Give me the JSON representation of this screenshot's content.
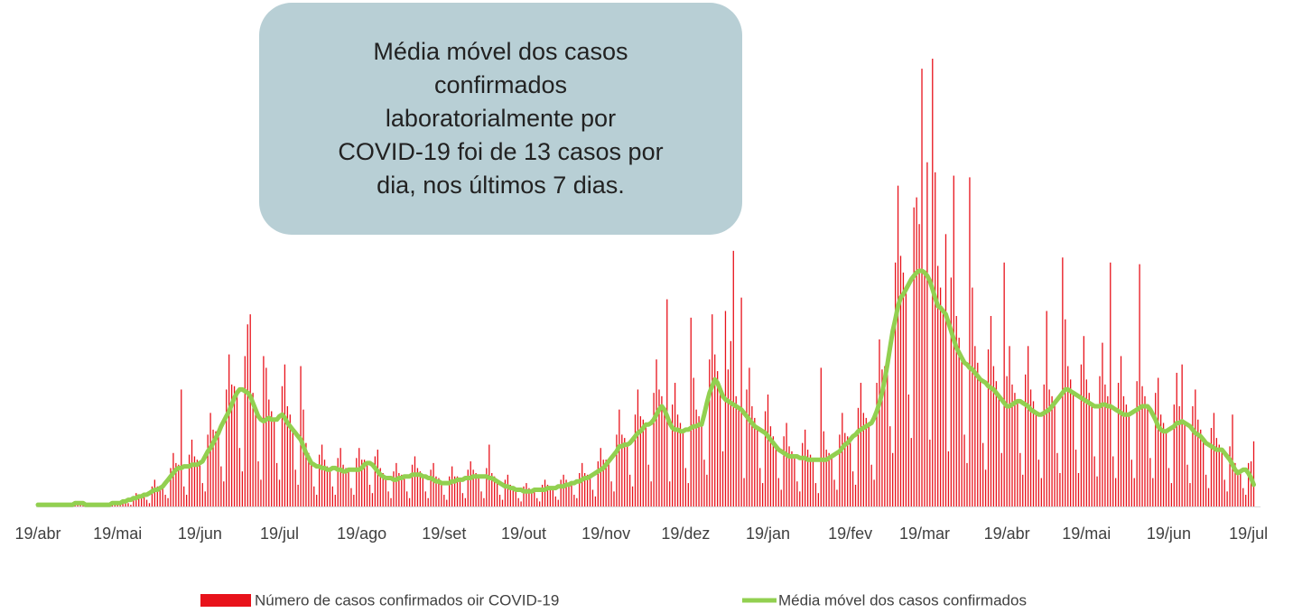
{
  "chart_data": {
    "type": "bar",
    "annotation": [
      "Média móvel dos casos",
      "confirmados",
      "laboratorialmente por",
      "COVID-19 foi de 13 casos por",
      "dia, nos últimos 7 dias."
    ],
    "categories": [
      "19/abr",
      null,
      null,
      null,
      null,
      null,
      null,
      null,
      null,
      null,
      null,
      null,
      null,
      null,
      null,
      null,
      null,
      null,
      null,
      null,
      null,
      null,
      null,
      null,
      null,
      null,
      null,
      null,
      null,
      null,
      "19/mai",
      null,
      null,
      null,
      null,
      null,
      null,
      null,
      null,
      null,
      null,
      null,
      null,
      null,
      null,
      null,
      null,
      null,
      null,
      null,
      null,
      null,
      null,
      null,
      null,
      null,
      null,
      null,
      null,
      null,
      null,
      "19/jun",
      null,
      null,
      null,
      null,
      null,
      null,
      null,
      null,
      null,
      null,
      null,
      null,
      null,
      null,
      null,
      null,
      null,
      null,
      null,
      null,
      null,
      null,
      null,
      null,
      null,
      null,
      null,
      null,
      null,
      "19/jul",
      null,
      null,
      null,
      null,
      null,
      null,
      null,
      null,
      null,
      null,
      null,
      null,
      null,
      null,
      null,
      null,
      null,
      null,
      null,
      null,
      null,
      null,
      null,
      null,
      null,
      null,
      null,
      null,
      null,
      null,
      "19/ago",
      null,
      null,
      null,
      null,
      null,
      null,
      null,
      null,
      null,
      null,
      null,
      null,
      null,
      null,
      null,
      null,
      null,
      null,
      null,
      null,
      null,
      null,
      null,
      null,
      null,
      null,
      null,
      null,
      null,
      null,
      "19/set",
      null,
      null,
      null,
      null,
      null,
      null,
      null,
      null,
      null,
      null,
      null,
      null,
      null,
      null,
      null,
      null,
      null,
      null,
      null,
      null,
      null,
      null,
      null,
      null,
      null,
      null,
      null,
      null,
      null,
      "19/out",
      null,
      null,
      null,
      null,
      null,
      null,
      null,
      null,
      null,
      null,
      null,
      null,
      null,
      null,
      null,
      null,
      null,
      null,
      null,
      null,
      null,
      null,
      null,
      null,
      null,
      null,
      null,
      null,
      null,
      null,
      "19/nov",
      null,
      null,
      null,
      null,
      null,
      null,
      null,
      null,
      null,
      null,
      null,
      null,
      null,
      null,
      null,
      null,
      null,
      null,
      null,
      null,
      null,
      null,
      null,
      null,
      null,
      null,
      null,
      null,
      null,
      "19/dez",
      null,
      null,
      null,
      null,
      null,
      null,
      null,
      null,
      null,
      null,
      null,
      null,
      null,
      null,
      null,
      null,
      null,
      null,
      null,
      null,
      null,
      null,
      null,
      null,
      null,
      null,
      null,
      null,
      null,
      null,
      "19/jan",
      null,
      null,
      null,
      null,
      null,
      null,
      null,
      null,
      null,
      null,
      null,
      null,
      null,
      null,
      null,
      null,
      null,
      null,
      null,
      null,
      null,
      null,
      null,
      null,
      null,
      null,
      null,
      null,
      null,
      null,
      "19/fev",
      null,
      null,
      null,
      null,
      null,
      null,
      null,
      null,
      null,
      null,
      null,
      null,
      null,
      null,
      null,
      null,
      null,
      null,
      null,
      null,
      null,
      null,
      null,
      null,
      null,
      null,
      null,
      "19/mar",
      null,
      null,
      null,
      null,
      null,
      null,
      null,
      null,
      null,
      null,
      null,
      null,
      null,
      null,
      null,
      null,
      null,
      null,
      null,
      null,
      null,
      null,
      null,
      null,
      null,
      null,
      null,
      null,
      null,
      null,
      "19/abr",
      null,
      null,
      null,
      null,
      null,
      null,
      null,
      null,
      null,
      null,
      null,
      null,
      null,
      null,
      null,
      null,
      null,
      null,
      null,
      null,
      null,
      null,
      null,
      null,
      null,
      null,
      null,
      null,
      null,
      "19/mai",
      null,
      null,
      null,
      null,
      null,
      null,
      null,
      null,
      null,
      null,
      null,
      null,
      null,
      null,
      null,
      null,
      null,
      null,
      null,
      null,
      null,
      null,
      null,
      null,
      null,
      null,
      null,
      null,
      null,
      null,
      "19/jun",
      null,
      null,
      null,
      null,
      null,
      null,
      null,
      null,
      null,
      null,
      null,
      null,
      null,
      null,
      null,
      null,
      null,
      null,
      null,
      null,
      null,
      null,
      null,
      null,
      null,
      null,
      null,
      null,
      null,
      "19/jul",
      null,
      null
    ],
    "series": [
      {
        "name": "Número de casos confirmados oir COVID-19",
        "type": "bar",
        "color": "#e8121b",
        "values": [
          0,
          1,
          2,
          1,
          1,
          1,
          0,
          0,
          1,
          2,
          1,
          1,
          1,
          0,
          1,
          3,
          3,
          2,
          1,
          1,
          0,
          0,
          1,
          2,
          1,
          1,
          1,
          0,
          1,
          3,
          3,
          2,
          3,
          3,
          2,
          1,
          6,
          8,
          7,
          7,
          7,
          4,
          2,
          12,
          16,
          12,
          12,
          12,
          7,
          5,
          23,
          32,
          26,
          25,
          70,
          12,
          7,
          31,
          40,
          30,
          28,
          26,
          14,
          9,
          43,
          56,
          46,
          45,
          44,
          24,
          15,
          70,
          91,
          73,
          72,
          68,
          35,
          21,
          90,
          109,
          115,
          68,
          58,
          27,
          16,
          90,
          83,
          64,
          57,
          52,
          26,
          16,
          72,
          85,
          60,
          55,
          46,
          22,
          13,
          84,
          58,
          38,
          32,
          26,
          12,
          7,
          31,
          37,
          28,
          24,
          22,
          12,
          7,
          29,
          35,
          25,
          23,
          22,
          11,
          7,
          29,
          35,
          28,
          28,
          26,
          13,
          8,
          30,
          34,
          23,
          20,
          17,
          9,
          5,
          21,
          26,
          20,
          19,
          18,
          9,
          5,
          25,
          30,
          23,
          21,
          18,
          9,
          5,
          22,
          26,
          18,
          17,
          14,
          7,
          4,
          18,
          24,
          18,
          18,
          16,
          8,
          5,
          22,
          27,
          22,
          20,
          18,
          9,
          5,
          23,
          37,
          20,
          18,
          15,
          7,
          4,
          16,
          19,
          13,
          12,
          10,
          5,
          3,
          12,
          14,
          11,
          10,
          10,
          5,
          3,
          13,
          16,
          13,
          12,
          11,
          6,
          4,
          16,
          19,
          16,
          14,
          14,
          7,
          5,
          20,
          26,
          20,
          19,
          18,
          10,
          6,
          27,
          35,
          28,
          28,
          27,
          15,
          9,
          43,
          58,
          43,
          41,
          37,
          19,
          12,
          55,
          70,
          54,
          52,
          49,
          25,
          15,
          68,
          88,
          70,
          66,
          58,
          124,
          15,
          61,
          74,
          55,
          50,
          45,
          23,
          14,
          113,
          77,
          58,
          54,
          49,
          28,
          19,
          88,
          115,
          91,
          81,
          70,
          33,
          117,
          82,
          99,
          153,
          66,
          59,
          125,
          17,
          70,
          83,
          60,
          53,
          47,
          23,
          14,
          57,
          67,
          48,
          42,
          36,
          17,
          10,
          42,
          50,
          36,
          33,
          30,
          15,
          9,
          38,
          46,
          34,
          31,
          28,
          14,
          8,
          83,
          45,
          34,
          32,
          30,
          16,
          10,
          43,
          56,
          44,
          42,
          40,
          21,
          13,
          59,
          74,
          56,
          53,
          49,
          25,
          16,
          74,
          100,
          82,
          84,
          85,
          48,
          32,
          146,
          192,
          150,
          140,
          130,
          67,
          41,
          179,
          185,
          169,
          262,
          140,
          206,
          40,
          268,
          200,
          144,
          131,
          117,
          163,
          33,
          137,
          198,
          114,
          101,
          89,
          43,
          26,
          197,
          131,
          96,
          86,
          76,
          38,
          22,
          94,
          114,
          84,
          75,
          66,
          32,
          146,
          78,
          96,
          73,
          68,
          63,
          32,
          19,
          79,
          96,
          70,
          63,
          56,
          28,
          17,
          73,
          117,
          70,
          66,
          62,
          32,
          20,
          149,
          112,
          84,
          76,
          68,
          34,
          20,
          85,
          102,
          76,
          68,
          61,
          30,
          18,
          78,
          98,
          73,
          66,
          146,
          30,
          17,
          74,
          90,
          66,
          61,
          55,
          28,
          17,
          75,
          145,
          72,
          66,
          60,
          29,
          17,
          68,
          77,
          55,
          50,
          45,
          23,
          14,
          61,
          80,
          60,
          85,
          50,
          25,
          14,
          60,
          70,
          52,
          46,
          40,
          19,
          11,
          47,
          56,
          41,
          37,
          34,
          16,
          9,
          36,
          55,
          26,
          22,
          21,
          11,
          7,
          26,
          27,
          39
        ]
      },
      {
        "name": "Média móvel dos casos confirmados",
        "type": "line",
        "color": "#92d050",
        "values": [
          1,
          1,
          1,
          1,
          1,
          1,
          1,
          1,
          1,
          1,
          1,
          1,
          1,
          1,
          2,
          2,
          2,
          2,
          1,
          1,
          1,
          1,
          1,
          1,
          1,
          1,
          1,
          1,
          2,
          2,
          2,
          2,
          3,
          3,
          4,
          4,
          5,
          5,
          6,
          6,
          7,
          7,
          8,
          9,
          10,
          10,
          11,
          12,
          14,
          16,
          18,
          20,
          22,
          23,
          23,
          24,
          24,
          24,
          25,
          25,
          25,
          26,
          27,
          30,
          33,
          35,
          38,
          41,
          44,
          48,
          51,
          54,
          57,
          61,
          65,
          68,
          70,
          70,
          69,
          68,
          66,
          62,
          58,
          54,
          52,
          51,
          52,
          53,
          52,
          52,
          52,
          54,
          55,
          53,
          50,
          48,
          46,
          44,
          42,
          40,
          36,
          32,
          29,
          26,
          25,
          24,
          24,
          23,
          23,
          22,
          22,
          23,
          23,
          22,
          22,
          21,
          21,
          22,
          22,
          22,
          22,
          22,
          23,
          25,
          26,
          26,
          25,
          23,
          21,
          19,
          18,
          17,
          17,
          17,
          16,
          16,
          17,
          17,
          18,
          18,
          18,
          19,
          19,
          19,
          19,
          18,
          18,
          17,
          17,
          16,
          15,
          15,
          14,
          14,
          14,
          14,
          15,
          15,
          16,
          16,
          16,
          17,
          17,
          17,
          18,
          18,
          18,
          18,
          18,
          18,
          17,
          17,
          16,
          15,
          14,
          13,
          12,
          12,
          11,
          11,
          10,
          10,
          10,
          9,
          9,
          9,
          9,
          10,
          10,
          10,
          10,
          10,
          11,
          11,
          11,
          11,
          12,
          12,
          12,
          13,
          13,
          14,
          14,
          15,
          15,
          16,
          17,
          17,
          18,
          19,
          20,
          21,
          22,
          23,
          25,
          27,
          29,
          31,
          33,
          36,
          36,
          37,
          37,
          38,
          40,
          42,
          44,
          45,
          47,
          49,
          49,
          50,
          52,
          55,
          58,
          60,
          58,
          54,
          50,
          47,
          46,
          46,
          45,
          45,
          46,
          46,
          47,
          48,
          48,
          49,
          49,
          55,
          62,
          68,
          72,
          76,
          74,
          70,
          66,
          64,
          63,
          62,
          61,
          60,
          59,
          58,
          56,
          54,
          52,
          50,
          48,
          47,
          46,
          45,
          44,
          42,
          40,
          38,
          36,
          34,
          33,
          32,
          31,
          30,
          30,
          30,
          30,
          29,
          29,
          29,
          28,
          28,
          28,
          28,
          28,
          28,
          28,
          28,
          29,
          30,
          31,
          32,
          33,
          35,
          37,
          38,
          40,
          42,
          43,
          45,
          46,
          47,
          48,
          49,
          50,
          53,
          57,
          62,
          68,
          76,
          85,
          95,
          105,
          112,
          120,
          125,
          127,
          130,
          133,
          136,
          138,
          140,
          141,
          141,
          140,
          138,
          135,
          130,
          125,
          120,
          119,
          117,
          115,
          110,
          105,
          100,
          95,
          92,
          89,
          86,
          85,
          83,
          82,
          80,
          78,
          76,
          75,
          74,
          72,
          71,
          70,
          68,
          66,
          64,
          62,
          60,
          60,
          61,
          62,
          63,
          63,
          62,
          61,
          60,
          58,
          57,
          56,
          55,
          55,
          56,
          57,
          58,
          60,
          62,
          64,
          66,
          68,
          70,
          70,
          69,
          68,
          67,
          66,
          65,
          64,
          63,
          62,
          61,
          60,
          60,
          60,
          61,
          61,
          60,
          60,
          59,
          58,
          57,
          56,
          55,
          55,
          55,
          56,
          57,
          58,
          59,
          60,
          60,
          60,
          58,
          55,
          52,
          48,
          46,
          45,
          45,
          46,
          47,
          48,
          50,
          50,
          51,
          50,
          49,
          48,
          46,
          44,
          43,
          42,
          40,
          38,
          37,
          36,
          35,
          34,
          34,
          34,
          32,
          30,
          28,
          25,
          22,
          20,
          21,
          22,
          22,
          20,
          17,
          13
        ]
      }
    ]
  }
}
